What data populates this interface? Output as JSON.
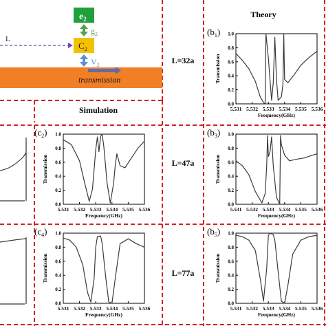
{
  "schematic": {
    "e2_label": "e",
    "e2_sub": "2",
    "c2_label": "C",
    "c2_sub": "2",
    "g2_label": "g",
    "g2_sub": "2",
    "v2_label": "V",
    "v2_sub": "2",
    "l_label": "L",
    "transmission_label": "transmission"
  },
  "headers": {
    "theory": "Theory",
    "simulation": "Simulation"
  },
  "rows": [
    {
      "label": "L=32a"
    },
    {
      "label": "L=47a"
    },
    {
      "label": "L=77a"
    }
  ],
  "colors": {
    "dash_border": "#d42020",
    "e2_box": "#1fa03c",
    "c2_box": "#f2c200",
    "waveguide": "#f07f26",
    "coupling_arrow": "#5b8fd6",
    "g2_arrow": "#5aa04a",
    "l_dash": "#7a3fb8",
    "curve": "#3a3a3a"
  },
  "chart_data": [
    {
      "id": "c2",
      "panel_label": "c",
      "panel_sub": "2",
      "type": "line",
      "xlabel": "Frequency(GHz)",
      "ylabel": "Transmission",
      "xlim": [
        5.531,
        5.536
      ],
      "ylim": [
        0.0,
        1.0
      ],
      "xticks": [
        "5.531",
        "5.532",
        "5.533",
        "5.534",
        "5.535",
        "5.536"
      ],
      "yticks": [
        "0.0",
        "0.2",
        "0.4",
        "0.6",
        "0.8",
        "1.0"
      ],
      "series": [
        {
          "x": [
            5.531,
            5.5315,
            5.532,
            5.5323,
            5.5326,
            5.5328,
            5.533,
            5.5331,
            5.5332,
            5.5333,
            5.5334,
            5.5335,
            5.5337,
            5.5339,
            5.5341,
            5.5342,
            5.5343,
            5.5345,
            5.5348,
            5.5352,
            5.5356,
            5.536
          ],
          "y": [
            0.92,
            0.85,
            0.62,
            0.32,
            0.04,
            0.22,
            0.78,
            0.96,
            0.75,
            0.97,
            1.0,
            0.82,
            0.3,
            0.02,
            0.3,
            0.55,
            0.72,
            0.55,
            0.52,
            0.66,
            0.8,
            0.9
          ]
        }
      ]
    },
    {
      "id": "b1",
      "panel_label": "b",
      "panel_sub": "1",
      "type": "line",
      "xlabel": "Frequency(GHz)",
      "ylabel": "Transmission",
      "xlim": [
        5.531,
        5.536
      ],
      "ylim": [
        0.0,
        1.0
      ],
      "xticks": [
        "5.531",
        "5.532",
        "5.533",
        "5.534",
        "5.535",
        "5.536"
      ],
      "yticks": [
        "0.0",
        "0.2",
        "0.4",
        "0.6",
        "0.8",
        "1.0"
      ],
      "series": [
        {
          "x": [
            5.531,
            5.5314,
            5.5318,
            5.5322,
            5.5325,
            5.5327,
            5.5328,
            5.53285,
            5.533,
            5.5332,
            5.5333,
            5.5334,
            5.5335,
            5.5336,
            5.5338,
            5.5339,
            5.53395,
            5.534,
            5.5342,
            5.5346,
            5.535,
            5.5355,
            5.536
          ],
          "y": [
            0.72,
            0.62,
            0.5,
            0.32,
            0.1,
            0.02,
            0.0,
            1.0,
            0.65,
            0.05,
            0.3,
            0.95,
            0.35,
            0.05,
            0.1,
            0.28,
            1.0,
            0.35,
            0.3,
            0.42,
            0.55,
            0.66,
            0.75
          ]
        }
      ]
    },
    {
      "id": "b3",
      "panel_label": "b",
      "panel_sub": "3",
      "type": "line",
      "xlabel": "Frequency(GHz)",
      "ylabel": "Transmission",
      "xlim": [
        5.531,
        5.536
      ],
      "ylim": [
        0.0,
        1.0
      ],
      "xticks": [
        "5.531",
        "5.532",
        "5.533",
        "5.534",
        "5.535",
        "5.536"
      ],
      "yticks": [
        "0.0",
        "0.2",
        "0.4",
        "0.6",
        "0.8",
        "1.0"
      ],
      "series": [
        {
          "x": [
            5.531,
            5.5314,
            5.5318,
            5.5322,
            5.5326,
            5.5328,
            5.5329,
            5.53295,
            5.533,
            5.5331,
            5.5332,
            5.5333,
            5.5335,
            5.5337,
            5.53375,
            5.5338,
            5.534,
            5.5343,
            5.5347,
            5.5352,
            5.5356,
            5.536
          ],
          "y": [
            0.62,
            0.55,
            0.42,
            0.18,
            0.02,
            0.15,
            0.55,
            0.98,
            0.68,
            0.75,
            0.96,
            0.55,
            0.1,
            0.0,
            0.98,
            0.85,
            0.7,
            0.62,
            0.64,
            0.66,
            0.69,
            0.72
          ]
        }
      ]
    },
    {
      "id": "c4",
      "panel_label": "c",
      "panel_sub": "4",
      "type": "line",
      "xlabel": "Frequency(GHz)",
      "ylabel": "Transmission",
      "xlim": [
        5.531,
        5.536
      ],
      "ylim": [
        0.0,
        1.0
      ],
      "xticks": [
        "5.531",
        "5.532",
        "5.533",
        "5.534",
        "5.535",
        "5.536"
      ],
      "yticks": [
        "0.0",
        "0.2",
        "0.4",
        "0.6",
        "0.8",
        "1.0"
      ],
      "series": [
        {
          "x": [
            5.531,
            5.5314,
            5.5318,
            5.5322,
            5.5325,
            5.5327,
            5.5329,
            5.533,
            5.5331,
            5.5333,
            5.5334,
            5.5336,
            5.5338,
            5.534,
            5.5342,
            5.5345,
            5.535,
            5.5355,
            5.536
          ],
          "y": [
            0.93,
            0.9,
            0.8,
            0.55,
            0.15,
            0.02,
            0.35,
            0.8,
            0.95,
            0.96,
            0.85,
            0.4,
            0.02,
            0.0,
            0.35,
            0.85,
            0.92,
            0.85,
            0.8
          ]
        }
      ]
    },
    {
      "id": "b5",
      "panel_label": "b",
      "panel_sub": "5",
      "type": "line",
      "xlabel": "Frequency(GHz)",
      "ylabel": "Transmission",
      "xlim": [
        5.531,
        5.536
      ],
      "ylim": [
        0.0,
        1.0
      ],
      "xticks": [
        "5.531",
        "5.532",
        "5.533",
        "5.534",
        "5.535",
        "5.536"
      ],
      "yticks": [
        "0.0",
        "0.2",
        "0.4",
        "0.6",
        "0.8",
        "1.0"
      ],
      "series": [
        {
          "x": [
            5.531,
            5.5314,
            5.5318,
            5.5322,
            5.5325,
            5.5327,
            5.5329,
            5.533,
            5.5331,
            5.5333,
            5.5334,
            5.5336,
            5.5338,
            5.534,
            5.5342,
            5.5345,
            5.535,
            5.5355,
            5.536
          ],
          "y": [
            0.97,
            0.95,
            0.9,
            0.75,
            0.35,
            0.03,
            0.5,
            0.97,
            1.0,
            0.98,
            0.9,
            0.45,
            0.03,
            0.0,
            0.25,
            0.7,
            0.9,
            0.95,
            0.97
          ]
        }
      ]
    }
  ]
}
